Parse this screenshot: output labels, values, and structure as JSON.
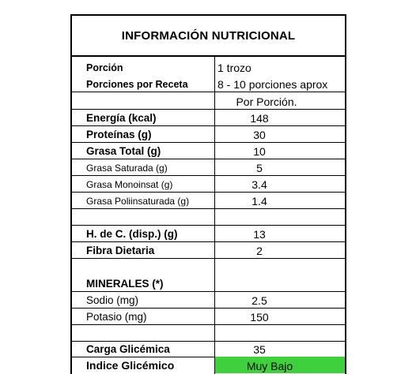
{
  "title": "INFORMACIÓN NUTRICIONAL",
  "serving": {
    "porcion_label": "Porción",
    "porcion_value": "1 trozo",
    "porciones_label": "Porciones por Receta",
    "porciones_value": "8 - 10 porciones aprox"
  },
  "column_header": "Por Porción.",
  "nutrients": [
    {
      "label": "Energía (kcal)",
      "value": "148"
    },
    {
      "label": "Proteínas (g)",
      "value": "30"
    },
    {
      "label": "Grasa Total (g)",
      "value": "10"
    },
    {
      "label": "Grasa Saturada (g)",
      "value": "5"
    },
    {
      "label": "Grasa Monoinsat (g)",
      "value": "3.4"
    },
    {
      "label": "Grasa Poliinsaturada (g)",
      "value": "1.4"
    },
    {
      "label": "H. de C. (disp.) (g)",
      "value": "13"
    },
    {
      "label": "Fibra Dietaria",
      "value": "2"
    }
  ],
  "minerals": {
    "heading": "MINERALES (*)",
    "items": [
      {
        "label": "Sodio (mg)",
        "value": "2.5"
      },
      {
        "label": "Potasio (mg)",
        "value": "150"
      }
    ]
  },
  "glycemic": {
    "carga_label": "Carga Glicémica",
    "carga_value": "35",
    "indice_label": "Indice Glicémico",
    "indice_value": "Muy Bajo",
    "indice_color": "#3fd13b"
  }
}
